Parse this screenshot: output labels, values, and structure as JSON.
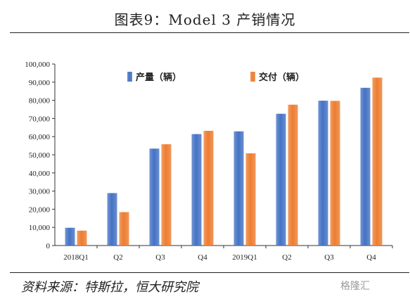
{
  "title": "图表9：Model 3 产销情况",
  "source": "资料来源：特斯拉，恒大研究院",
  "watermark": "格隆汇",
  "colors": {
    "production": "#4472C4",
    "delivery": "#ED7D31",
    "axis": "#333333"
  },
  "chart_data": {
    "type": "bar",
    "categories": [
      "2018Q1",
      "Q2",
      "Q3",
      "Q4",
      "2019Q1",
      "Q2",
      "Q3",
      "Q4"
    ],
    "series": [
      {
        "name": "产量（辆）",
        "values": [
          9800,
          28900,
          53400,
          61400,
          62900,
          72600,
          79800,
          86900
        ]
      },
      {
        "name": "交付（辆）",
        "values": [
          8200,
          18400,
          55800,
          63200,
          50800,
          77600,
          79700,
          92500
        ]
      }
    ],
    "ylim": [
      0,
      100000
    ],
    "yticks": [
      "0",
      "10,000",
      "20,000",
      "30,000",
      "40,000",
      "50,000",
      "60,000",
      "70,000",
      "80,000",
      "90,000",
      "100,000"
    ],
    "legend_position": "top-left",
    "grid": false
  }
}
